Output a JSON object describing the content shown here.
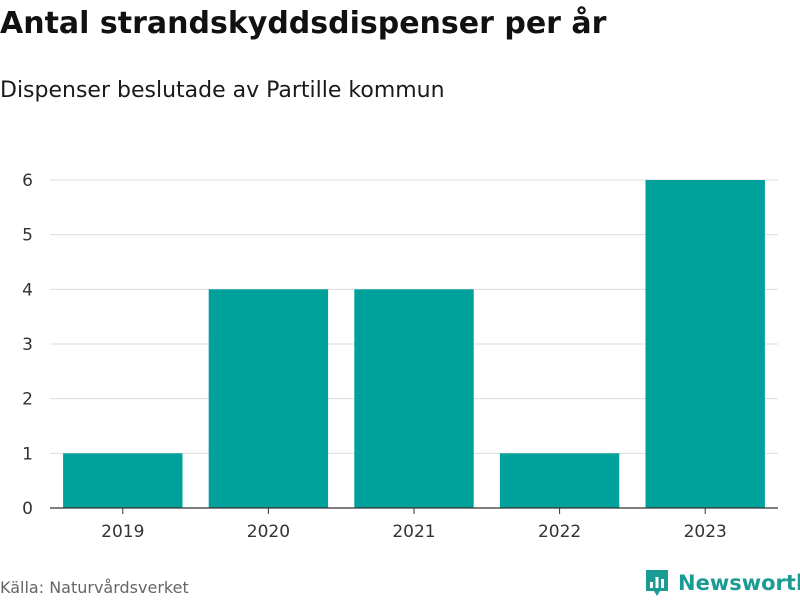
{
  "title": "Antal strandskyddsdispenser per år",
  "subtitle": "Dispenser beslutade av Partille kommun",
  "source": "Källa: Naturvårdsverket",
  "brand": "Newsworthy",
  "colors": {
    "bar": "#00a19a",
    "brand": "#1a9b93",
    "grid": "#dddddd",
    "axis": "#333333"
  },
  "chart_data": {
    "type": "bar",
    "title": "Antal strandskyddsdispenser per år",
    "subtitle": "Dispenser beslutade av Partille kommun",
    "categories": [
      "2019",
      "2020",
      "2021",
      "2022",
      "2023"
    ],
    "values": [
      1,
      4,
      4,
      1,
      6
    ],
    "xlabel": "",
    "ylabel": "",
    "ylim": [
      0,
      6
    ],
    "yticks": [
      0,
      1,
      2,
      3,
      4,
      5,
      6
    ],
    "grid": true
  }
}
